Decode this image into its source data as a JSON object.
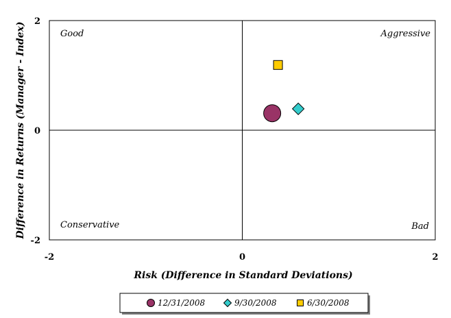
{
  "chart_data": {
    "type": "scatter",
    "xlabel": "Risk (Difference in Standard Deviations)",
    "ylabel": "Difference in Returns (Manager - Index)",
    "xlim": [
      -2,
      2
    ],
    "ylim": [
      -2,
      2
    ],
    "x_ticks": [
      "-2",
      "0",
      "2"
    ],
    "y_ticks": [
      "2",
      "0",
      "-2"
    ],
    "grid": false,
    "legend_position": "bottom",
    "quadrant_labels": {
      "top_left": "Good",
      "top_right": "Aggressive",
      "bottom_left": "Conservative",
      "bottom_right": "Bad"
    },
    "series": [
      {
        "name": "12/31/2008",
        "marker": "circle",
        "color": "#993366",
        "x": 0.31,
        "y": 0.31
      },
      {
        "name": "9/30/2008",
        "marker": "diamond",
        "color": "#33CCCC",
        "x": 0.58,
        "y": 0.39
      },
      {
        "name": "6/30/2008",
        "marker": "square",
        "color": "#FFCC00",
        "x": 0.37,
        "y": 1.19
      }
    ]
  }
}
